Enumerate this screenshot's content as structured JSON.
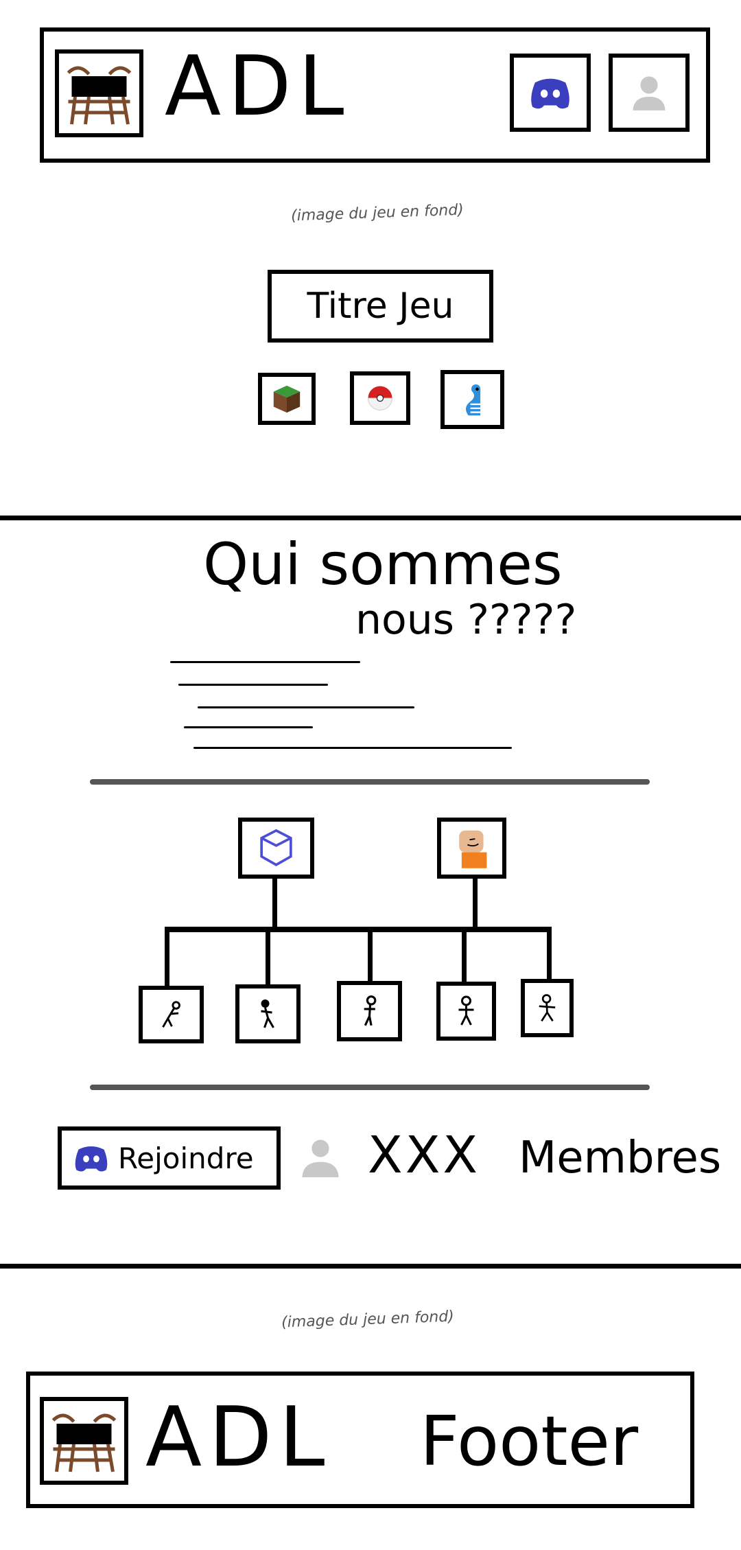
{
  "header": {
    "logo_icon": "adl-logo-icon",
    "title": "ADL",
    "discord_icon": "discord-icon",
    "user_icon": "user-icon"
  },
  "hero": {
    "background_note": "(image du jeu en fond)",
    "game_title": "Titre Jeu",
    "game_icons": [
      "minecraft-icon",
      "pokeball-icon",
      "worm-icon"
    ]
  },
  "about": {
    "heading_line1": "Qui sommes",
    "heading_line2": "nous ?????"
  },
  "org": {
    "leaders": [
      "cube-icon",
      "leader-avatar-icon"
    ],
    "members": [
      "stick-figure-icon",
      "stick-figure-icon",
      "stick-figure-icon",
      "stick-figure-icon",
      "stick-figure-icon"
    ]
  },
  "join": {
    "join_label": "Rejoindre",
    "count_text": "XXX",
    "members_label": "Membres"
  },
  "footer": {
    "background_note": "(image du jeu en fond)",
    "title": "ADL",
    "footer_label": "Footer"
  },
  "colors": {
    "discord": "#3a3fc0",
    "grey_user": "#c8c8c8",
    "grass": "#3a9a3a",
    "dirt": "#7a4a2a",
    "pokeball_red": "#d62020",
    "worm_blue": "#2f8fdc",
    "cube": "#4a4fd6",
    "avatar_skin": "#e8b890",
    "avatar_orange": "#f08020"
  }
}
